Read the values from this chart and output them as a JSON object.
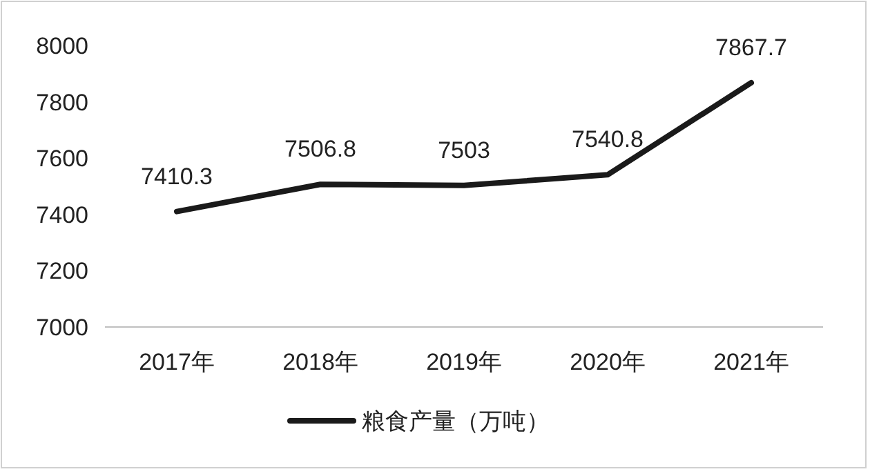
{
  "chart_data": {
    "type": "line",
    "categories": [
      "2017年",
      "2018年",
      "2019年",
      "2020年",
      "2021年"
    ],
    "series": [
      {
        "name": "粮食产量（万吨）",
        "color": "#1a1a1a",
        "values": [
          7410.3,
          7506.8,
          7503,
          7540.8,
          7867.7
        ]
      }
    ],
    "ylim": [
      7000,
      8000
    ],
    "yticks": [
      7000,
      7200,
      7400,
      7600,
      7800,
      8000
    ],
    "data_labels": true,
    "legend": "bottom"
  }
}
